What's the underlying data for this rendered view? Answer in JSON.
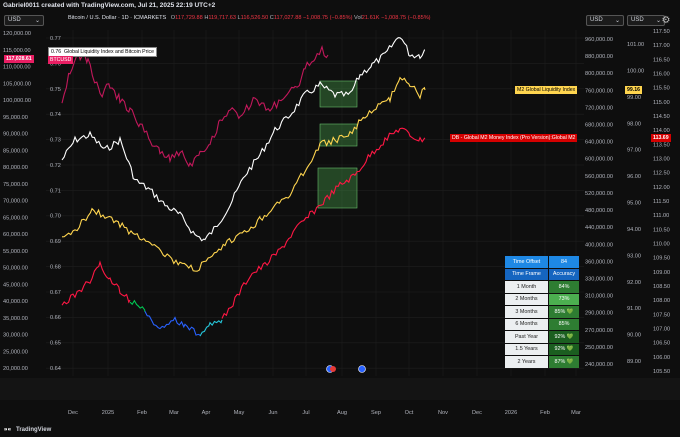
{
  "header": {
    "title": "Gabriel0011 created with TradingView.com, Jul 21, 2025 22:19 UTC+2",
    "currency_buttons": [
      "USD",
      "USD",
      "USD"
    ]
  },
  "legend": {
    "symbol": "Bitcoin / U.S. Dollar · 1D · ICMARKETS",
    "o_label": "O",
    "o_value": "117,729.88",
    "h_label": "H",
    "h_value": "119,717.63",
    "l_label": "L",
    "l_value": "116,526.50",
    "c_label": "C",
    "c_value": "117,027.88",
    "change": "−1,008.75 (−0.85%)",
    "vol_label": "Vol",
    "vol_value": "21.61K",
    "vol_change": "−1,008.75 (−0.85%)",
    "indicator_value": "0.76",
    "indicator_name": "Global Liquidity Index and Bitcoin Price",
    "btc_tag": "117,028.61",
    "btc_sub_tag": "BTCUSD"
  },
  "right_tags": {
    "m2_liquidity": "M2 Global Liquidity Index",
    "m2_value": "99.16",
    "db_index": "DB - Global M2 Money Index (Pro Version):Global M2",
    "db_value": "113.69"
  },
  "axes": {
    "btc_price": [
      "120,000.00",
      "115,000.00",
      "110,000.00",
      "105,000.00",
      "100,000.00",
      "95,000.00",
      "90,000.00",
      "85,000.00",
      "80,000.00",
      "75,000.00",
      "70,000.00",
      "65,000.00",
      "60,000.00",
      "55,000.00",
      "50,000.00",
      "45,000.00",
      "40,000.00",
      "35,000.00",
      "30,000.00",
      "25,000.00",
      "20,000.00"
    ],
    "index": [
      "0.77",
      "0.76",
      "0.75",
      "0.74",
      "0.73",
      "0.72",
      "0.71",
      "0.70",
      "0.69",
      "0.68",
      "0.67",
      "0.66",
      "0.65",
      "0.64"
    ],
    "m2_money": [
      "960,000.00",
      "880,000.00",
      "800,000.00",
      "760,000.00",
      "720,000.00",
      "680,000.00",
      "640,000.00",
      "600,000.00",
      "560,000.00",
      "520,000.00",
      "480,000.00",
      "440,000.00",
      "400,000.00",
      "360,000.00",
      "330,000.00",
      "310,000.00",
      "290,000.00",
      "270,000.00",
      "250,000.00",
      "240,000.00"
    ],
    "liquidity_a": [
      "101.00",
      "100.00",
      "99.00",
      "98.00",
      "97.00",
      "96.00",
      "95.00",
      "94.00",
      "93.00",
      "92.00",
      "91.00",
      "90.00",
      "89.00"
    ],
    "liquidity_b": [
      "117.50",
      "117.00",
      "116.50",
      "116.00",
      "115.50",
      "115.00",
      "114.50",
      "114.00",
      "113.50",
      "113.00",
      "112.50",
      "112.00",
      "111.50",
      "111.00",
      "110.50",
      "110.00",
      "109.50",
      "109.00",
      "108.50",
      "108.00",
      "107.50",
      "107.00",
      "106.50",
      "106.00",
      "105.50"
    ],
    "months": [
      "Dec",
      "2025",
      "Feb",
      "Mar",
      "Apr",
      "May",
      "Jun",
      "Jul",
      "Aug",
      "Sep",
      "Oct",
      "Nov",
      "Dec",
      "2026",
      "Feb",
      "Mar"
    ]
  },
  "table": {
    "offset_label": "Time Offset",
    "offset_value": "84",
    "col1": "Time Frame",
    "col2": "Accuracy",
    "rows": [
      {
        "frame": "1 Month",
        "acc": "84%",
        "color": "#2e7d32"
      },
      {
        "frame": "2 Months",
        "acc": "73%",
        "color": "#4caf50"
      },
      {
        "frame": "3 Months",
        "acc": "85% 💚",
        "color": "#2e7d32"
      },
      {
        "frame": "6 Months",
        "acc": "85%",
        "color": "#2e7d32"
      },
      {
        "frame": "Past Year",
        "acc": "92% 💚",
        "color": "#1b5e20"
      },
      {
        "frame": "1.5 Years",
        "acc": "92% 💚",
        "color": "#1b5e20"
      },
      {
        "frame": "2 Years",
        "acc": "87% 💚",
        "color": "#2e7d32"
      }
    ]
  },
  "footer": {
    "brand": "TradingView"
  },
  "colors": {
    "btc": "#ffffff",
    "btc_prior": "#c2185b",
    "m2_liq": "#ffd54f",
    "db_m2": "#ff1744",
    "accent_blue": "#1e88e5",
    "green_box": "#4caf50"
  }
}
